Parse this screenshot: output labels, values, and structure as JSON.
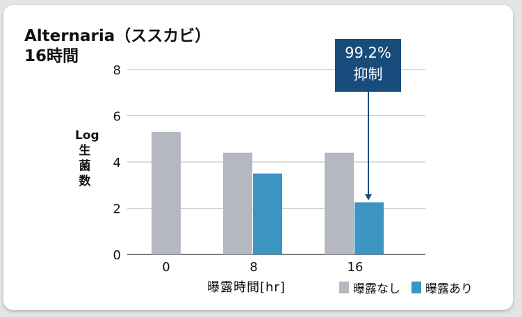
{
  "title_line1": "Alternaria（ススカビ）",
  "title_line2": "16時間",
  "ylabel_chars": [
    "Log",
    "生",
    "菌",
    "数"
  ],
  "xlabel": "曝露時間[hr]",
  "callout": {
    "line1": "99.2%",
    "line2": "抑制"
  },
  "colors": {
    "none": "#b5b8c1",
    "exposed": "#3c95c3",
    "callout": "#174c7c"
  },
  "chart_data": {
    "type": "bar",
    "categories": [
      "0",
      "8",
      "16"
    ],
    "series": [
      {
        "name": "曝露なし",
        "values": [
          5.3,
          4.4,
          4.4
        ]
      },
      {
        "name": "曝露あり",
        "values": [
          null,
          3.5,
          2.25
        ]
      }
    ],
    "yticks": [
      "0",
      "2",
      "4",
      "6",
      "8"
    ],
    "ylim": [
      0,
      8
    ],
    "grid": true,
    "legend": "bottom-right"
  }
}
